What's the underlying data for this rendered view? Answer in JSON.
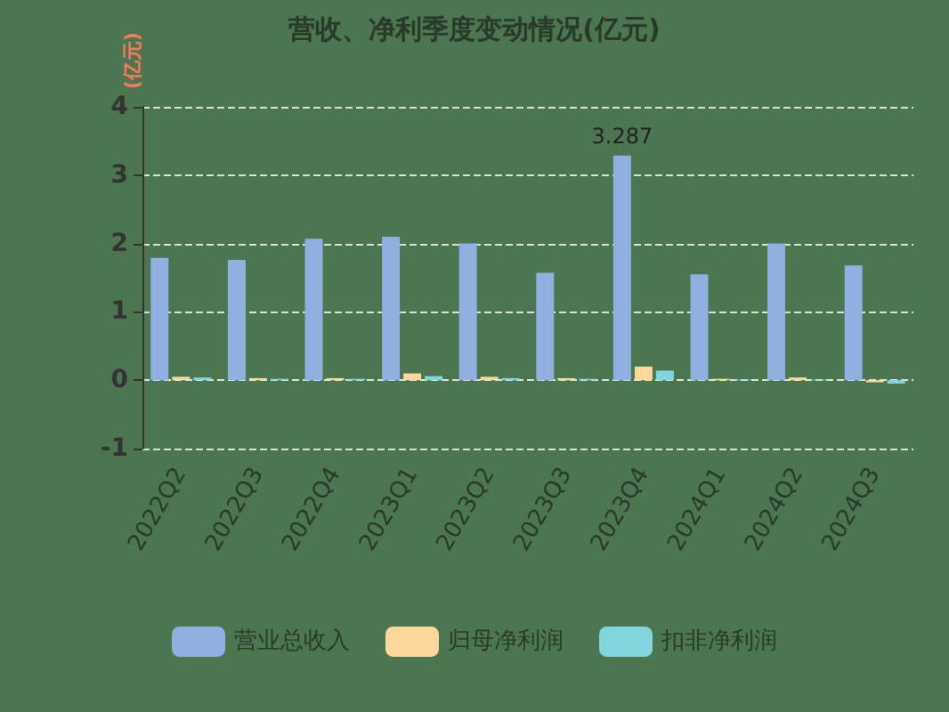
{
  "chart_data": {
    "type": "bar",
    "title": "营收、净利季度变动情况(亿元)",
    "ylabel": "(亿元)",
    "categories": [
      "2022Q2",
      "2022Q3",
      "2022Q4",
      "2023Q1",
      "2023Q2",
      "2023Q3",
      "2023Q4",
      "2024Q1",
      "2024Q2",
      "2024Q3"
    ],
    "series": [
      {
        "name": "营业总收入",
        "color": "#8fb0e0",
        "values": [
          1.79,
          1.76,
          2.07,
          2.1,
          2.0,
          1.57,
          3.287,
          1.55,
          2.0,
          1.68
        ],
        "value_labels": [
          null,
          null,
          null,
          null,
          null,
          null,
          "3.287",
          null,
          null,
          null
        ]
      },
      {
        "name": "归母净利润",
        "color": "#f9d89a",
        "values": [
          0.05,
          0.03,
          0.03,
          0.1,
          0.05,
          0.03,
          0.2,
          0.02,
          0.04,
          -0.03
        ]
      },
      {
        "name": "扣非净利润",
        "color": "#80d6dc",
        "values": [
          0.04,
          0.02,
          0.02,
          0.06,
          0.03,
          0.02,
          0.14,
          0.01,
          0.01,
          -0.05
        ]
      }
    ],
    "ylim": [
      -1,
      4
    ],
    "yticks": [
      -1,
      0,
      1,
      2,
      3,
      4
    ],
    "grid": "y",
    "legend": "bottom"
  }
}
